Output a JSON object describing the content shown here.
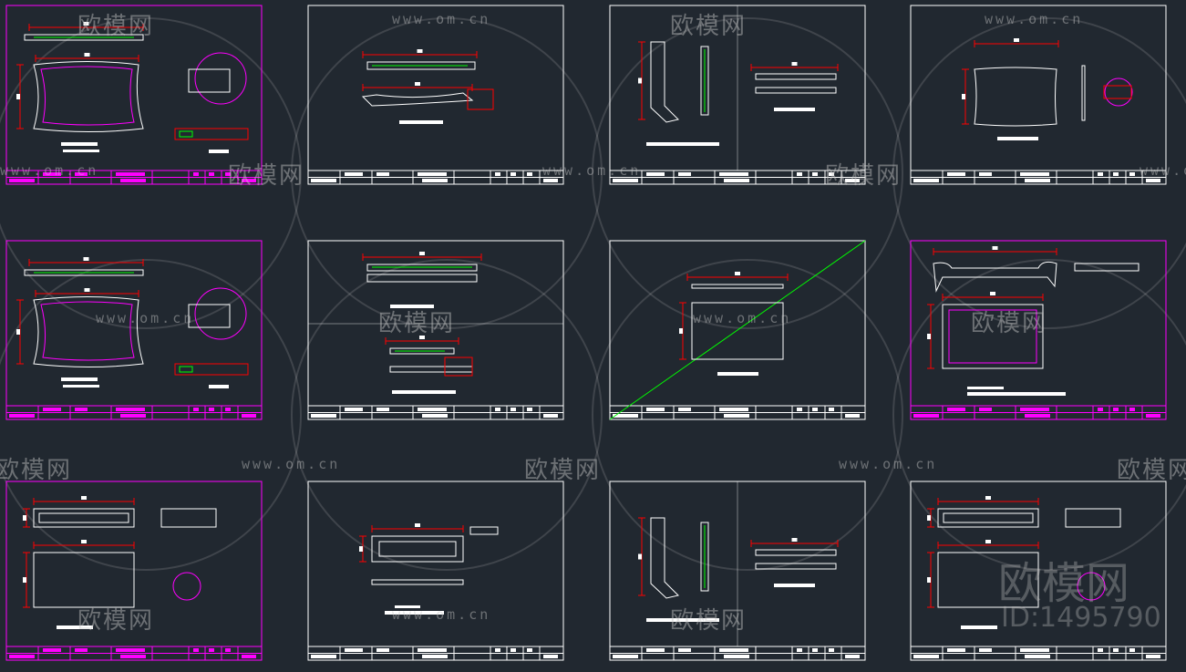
{
  "colors": {
    "background": "#212830",
    "border_white": "#ffffff",
    "border_magenta": "#ff00ff",
    "dimension": "#ff0000",
    "geometry": "#ffffff",
    "highlight": "#00ff00",
    "circle": "#ff00ff"
  },
  "sheets": [
    {
      "border": "magenta",
      "variant": "tray-plan"
    },
    {
      "border": "white",
      "variant": "rail"
    },
    {
      "border": "white",
      "variant": "side"
    },
    {
      "border": "white",
      "variant": "plan-circle"
    },
    {
      "border": "magenta",
      "variant": "tray-plan"
    },
    {
      "border": "white",
      "variant": "two-rails"
    },
    {
      "border": "white",
      "variant": "diagonal"
    },
    {
      "border": "magenta",
      "variant": "table"
    },
    {
      "border": "magenta",
      "variant": "box"
    },
    {
      "border": "white",
      "variant": "box-small"
    },
    {
      "border": "white",
      "variant": "side"
    },
    {
      "border": "white",
      "variant": "box"
    }
  ],
  "watermark": {
    "logo": "欧模网",
    "url": "www.om.cn",
    "id": "ID:1495790"
  }
}
